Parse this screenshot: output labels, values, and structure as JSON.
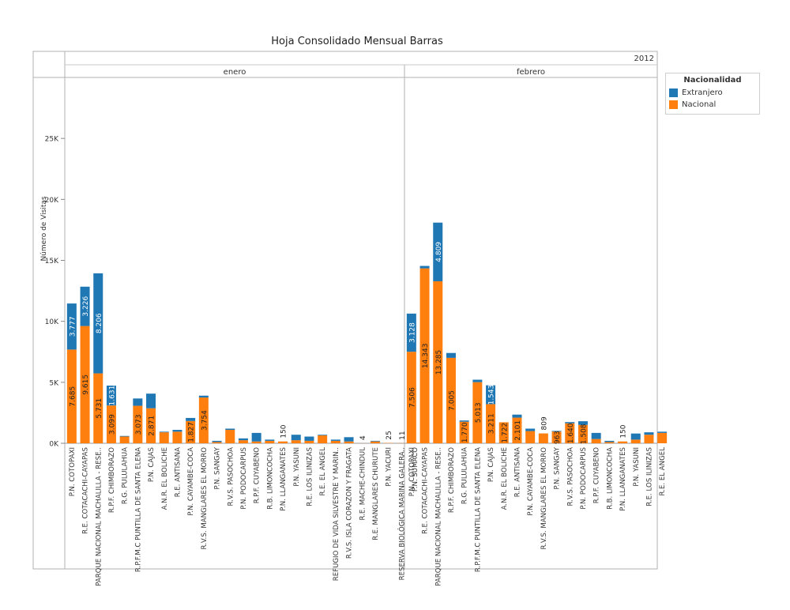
{
  "chart_data": {
    "type": "bar",
    "title": "Hoja Consolidado Mensual Barras",
    "year_label": "2012",
    "ylabel": "Número de Visitas",
    "ylim": [
      0,
      30000
    ],
    "yticks": [
      0,
      5000,
      10000,
      15000,
      20000,
      25000
    ],
    "ytick_labels": [
      "0K",
      "5K",
      "10K",
      "15K",
      "20K",
      "25K"
    ],
    "legend": {
      "title": "Nacionalidad",
      "items": [
        {
          "name": "Extranjero",
          "color": "#1f77b4"
        },
        {
          "name": "Nacional",
          "color": "#ff7f0e"
        }
      ]
    },
    "panels": [
      {
        "month": "enero",
        "categories": [
          "P.N. COTOPAXI",
          "R.E. COTACACHI-CAYAPAS",
          "PARQUE NACIONAL MACHALILLA - RESE..",
          "R.P.F. CHIMBORAZO",
          "R.G. PULULAHUA",
          "R.P.F.M.C PUNTILLA DE SANTA ELENA",
          "P.N. CAJAS",
          "A.N.R. EL BOLICHE",
          "R.E. ANTISANA",
          "P.N. CAYAMBE-COCA",
          "R.V.S. MANGLARES EL MORRO",
          "P.N. SANGAY",
          "R.V.S. PASOCHOA",
          "P.N. PODOCARPUS",
          "R.P.F. CUYABENO",
          "R.B. LIMONCOCHA",
          "P.N. LLANGANATES",
          "P.N. YASUNI",
          "R.E. LOS ILINIZAS",
          "R.E. EL ANGEL",
          "REFUGIO DE VIDA SILVESTRE Y MARIN..",
          "R.V.S. ISLA CORAZON Y FRAGATA",
          "R.E. MACHE-CHINDUL",
          "R.E. MANGLARES CHURUTE",
          "P.N. YACURI",
          "RESERVA BIOLÓGICA MARINA GALERA..",
          "P.N. SUMACO"
        ],
        "series": [
          {
            "name": "Nacional",
            "values": [
              7685,
              9615,
              5731,
              3099,
              550,
              3073,
              2871,
              900,
              950,
              1827,
              3754,
              100,
              1100,
              250,
              150,
              200,
              150,
              250,
              200,
              650,
              200,
              150,
              4,
              150,
              25,
              11,
              50
            ]
          },
          {
            "name": "Extranjero",
            "values": [
              3777,
              3226,
              8206,
              1631,
              50,
              600,
              1200,
              50,
              150,
              250,
              150,
              100,
              100,
              150,
              700,
              100,
              0,
              450,
              350,
              50,
              100,
              350,
              0,
              50,
              0,
              0,
              0
            ]
          }
        ],
        "nacional_labels": [
          "7.685",
          "9.615",
          "5.731",
          "3.099",
          "",
          "3.073",
          "2.871",
          "",
          "",
          "1.827",
          "3.754",
          "",
          "",
          "",
          "",
          "",
          "",
          "",
          "",
          "",
          "",
          "",
          "",
          "",
          "",
          "",
          ""
        ],
        "extranjero_labels": [
          "3.777",
          "3.226",
          "8.206",
          "1.631",
          "",
          "",
          "",
          "",
          "",
          "",
          "",
          "",
          "",
          "",
          "",
          "",
          "",
          "",
          "",
          "",
          "",
          "",
          "",
          "",
          "",
          "",
          ""
        ],
        "top_labels": [
          "",
          "",
          "",
          "",
          "",
          "",
          "",
          "",
          "",
          "",
          "",
          "",
          "",
          "",
          "",
          "",
          "150",
          "",
          "",
          "",
          "",
          "",
          "4",
          "",
          "25",
          "11",
          ""
        ]
      },
      {
        "month": "febrero",
        "categories": [
          "P.N. COTOPAXI",
          "R.E. COTACACHI-CAYAPAS",
          "PARQUE NACIONAL MACHALILLA - RESE..",
          "R.P.F. CHIMBORAZO",
          "R.G. PULULAHUA",
          "R.P.F.M.C PUNTILLA DE SANTA ELENA",
          "P.N. CAJAS",
          "A.N.R. EL BOLICHE",
          "R.E. ANTISANA",
          "P.N. CAYAMBE-COCA",
          "R.V.S. MANGLARES EL MORRO",
          "P.N. SANGAY",
          "R.V.S. PASOCHOA",
          "P.N. PODOCARPUS",
          "R.P.F. CUYABENO",
          "R.B. LIMONCOCHA",
          "P.N. LLANGANATES",
          "P.N. YASUNI",
          "R.E. LOS ILINIZAS",
          "R.E. EL ANGEL"
        ],
        "series": [
          {
            "name": "Nacional",
            "values": [
              7506,
              14343,
              13285,
              7005,
              1770,
              5013,
              3211,
              1722,
              2101,
              1000,
              809,
              963,
              1640,
              1508,
              350,
              100,
              150,
              300,
              700,
              850
            ]
          },
          {
            "name": "Extranjero",
            "values": [
              3128,
              200,
              4809,
              400,
              100,
              200,
              1543,
              0,
              250,
              200,
              0,
              50,
              100,
              300,
              500,
              100,
              0,
              500,
              200,
              100
            ]
          }
        ],
        "nacional_labels": [
          "7.506",
          "14.343",
          "13.285",
          "7.005",
          "1.770",
          "5.013",
          "3.211",
          "1.722",
          "2.101",
          "",
          "",
          "963",
          "1.640",
          "1.508",
          "",
          "",
          "",
          "",
          "",
          ""
        ],
        "extranjero_labels": [
          "3.128",
          "",
          "4.809",
          "",
          "",
          "",
          "1.543",
          "",
          "",
          "",
          "",
          "",
          "",
          "",
          "",
          "",
          "",
          "",
          "",
          ""
        ],
        "top_labels": [
          "",
          "",
          "",
          "",
          "",
          "",
          "",
          "",
          "",
          "",
          "809",
          "",
          "",
          "",
          "",
          "",
          "150",
          "",
          "",
          ""
        ]
      }
    ]
  }
}
